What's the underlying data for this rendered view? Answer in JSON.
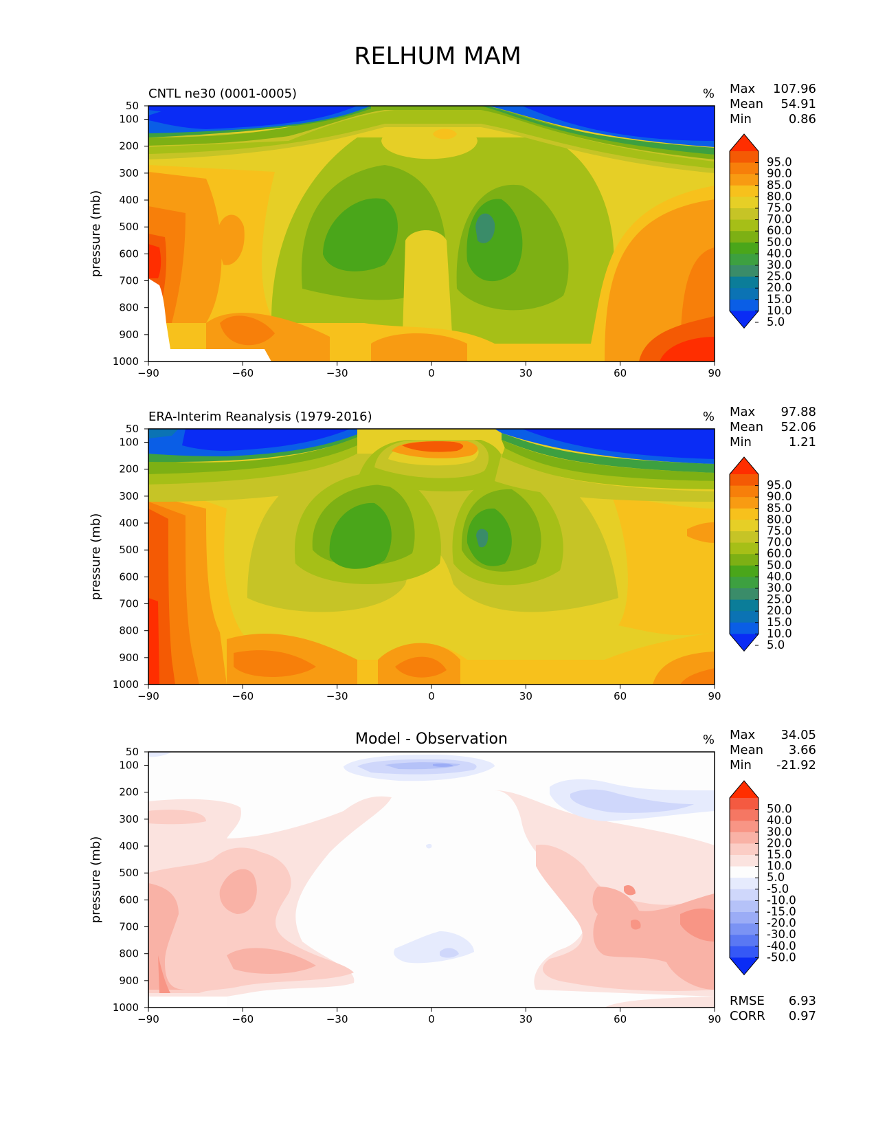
{
  "figure_title": "RELHUM MAM",
  "colors": {
    "abs_levels": [
      "#0a2cf5",
      "#0a5ee6",
      "#0b73b4",
      "#0b7d99",
      "#3a8c69",
      "#3da040",
      "#4aa61a",
      "#7db014",
      "#a6bf17",
      "#c6c426",
      "#e6cf26",
      "#f7c11c",
      "#f89b12",
      "#f77f0a",
      "#f45a04",
      "#ff2e00"
    ],
    "diff_levels": [
      "#0a2cf5",
      "#3558f6",
      "#5a78f3",
      "#7b93f4",
      "#9bacf6",
      "#b5c2f8",
      "#cfd7fb",
      "#e6ebfd",
      "#fdfdfd",
      "#fbe3df",
      "#fbcdc5",
      "#f9b2a6",
      "#f89585",
      "#f57763",
      "#f45a41",
      "#ff2e00"
    ]
  },
  "chart_data": [
    {
      "type": "contour",
      "name": "model",
      "title": "CNTL ne30 (0001-0005)",
      "units": "%",
      "stats": [
        {
          "label": "Max",
          "value": "107.96"
        },
        {
          "label": "Mean",
          "value": "54.91"
        },
        {
          "label": "Min",
          "value": "0.86"
        }
      ],
      "ylabel": "pressure (mb)",
      "x_ticks": [
        "−90",
        "−60",
        "−30",
        "0",
        "30",
        "60",
        "90"
      ],
      "y_ticks": [
        "50",
        "100",
        "200",
        "300",
        "400",
        "500",
        "600",
        "700",
        "800",
        "900",
        "1000"
      ],
      "xlim": [
        -90,
        90
      ],
      "ylim": [
        50,
        1000
      ],
      "colorbar_levels": [
        "95.0",
        "90.0",
        "85.0",
        "80.0",
        "75.0",
        "70.0",
        "60.0",
        "50.0",
        "40.0",
        "30.0",
        "25.0",
        "20.0",
        "15.0",
        "10.0",
        "5.0"
      ]
    },
    {
      "type": "contour",
      "name": "obs",
      "title": "ERA-Interim Reanalysis (1979-2016)",
      "units": "%",
      "stats": [
        {
          "label": "Max",
          "value": "97.88"
        },
        {
          "label": "Mean",
          "value": "52.06"
        },
        {
          "label": "Min",
          "value": "1.21"
        }
      ],
      "ylabel": "pressure (mb)",
      "x_ticks": [
        "−90",
        "−60",
        "−30",
        "0",
        "30",
        "60",
        "90"
      ],
      "y_ticks": [
        "50",
        "100",
        "200",
        "300",
        "400",
        "500",
        "600",
        "700",
        "800",
        "900",
        "1000"
      ],
      "xlim": [
        -90,
        90
      ],
      "ylim": [
        50,
        1000
      ],
      "colorbar_levels": [
        "95.0",
        "90.0",
        "85.0",
        "80.0",
        "75.0",
        "70.0",
        "60.0",
        "50.0",
        "40.0",
        "30.0",
        "25.0",
        "20.0",
        "15.0",
        "10.0",
        "5.0"
      ]
    },
    {
      "type": "contour",
      "name": "diff",
      "title": "Model - Observation",
      "units": "%",
      "stats": [
        {
          "label": "Max",
          "value": "34.05"
        },
        {
          "label": "Mean",
          "value": "3.66"
        },
        {
          "label": "Min",
          "value": "-21.92"
        }
      ],
      "bottom_stats": [
        {
          "label": "RMSE",
          "value": "6.93"
        },
        {
          "label": "CORR",
          "value": "0.97"
        }
      ],
      "ylabel": "pressure (mb)",
      "x_ticks": [
        "−90",
        "−60",
        "−30",
        "0",
        "30",
        "60",
        "90"
      ],
      "y_ticks": [
        "50",
        "100",
        "200",
        "300",
        "400",
        "500",
        "600",
        "700",
        "800",
        "900",
        "1000"
      ],
      "xlim": [
        -90,
        90
      ],
      "ylim": [
        50,
        1000
      ],
      "colorbar_levels": [
        "50.0",
        "40.0",
        "30.0",
        "20.0",
        "15.0",
        "10.0",
        "5.0",
        "-5.0",
        "-10.0",
        "-15.0",
        "-20.0",
        "-30.0",
        "-40.0",
        "-50.0"
      ]
    }
  ]
}
